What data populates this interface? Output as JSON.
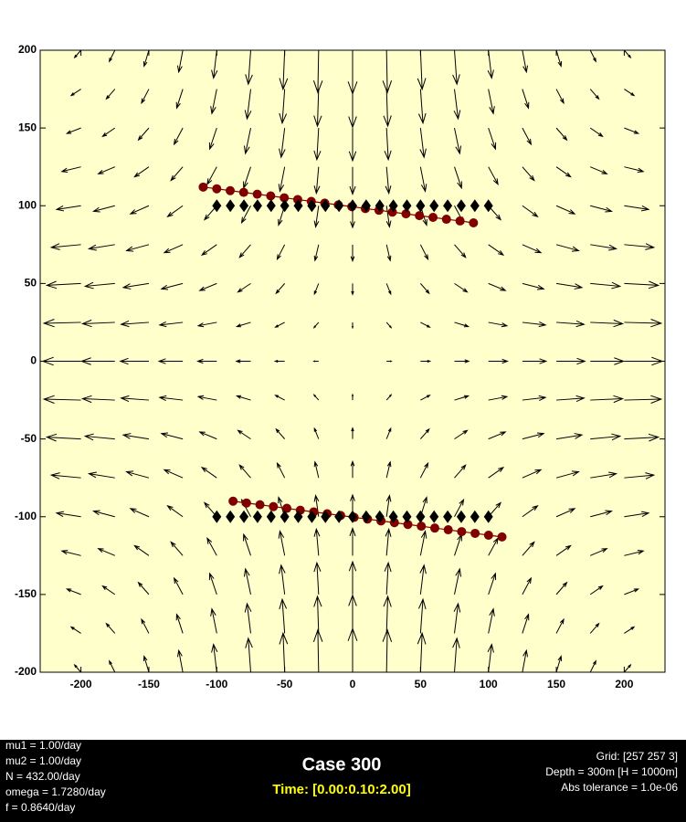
{
  "chart_data": {
    "type": "quiver",
    "title": "Case 300",
    "subtitle": "Time: [0.00:0.10:2.00]",
    "notes_left": [
      "mu1 = 1.00/day",
      "mu2 = 1.00/day",
      "N = 432.00/day",
      "omega = 1.7280/day",
      "f = 0.8640/day"
    ],
    "notes_right": [
      "Grid: [257 257 3]",
      "Depth = 300m  [H = 1000m]",
      "Abs tolerance = 1.0e-06"
    ],
    "xlim": [
      -230,
      230
    ],
    "ylim": [
      -200,
      200
    ],
    "xticks": [
      -200,
      -150,
      -100,
      -50,
      0,
      50,
      100,
      150,
      200
    ],
    "yticks": [
      -200,
      -150,
      -100,
      -50,
      0,
      50,
      100,
      150,
      200
    ],
    "background": "#ffffcc",
    "quiver": {
      "color": "#000000",
      "x": [
        -200,
        -175,
        -150,
        -125,
        -100,
        -75,
        -50,
        -25,
        0,
        25,
        50,
        75,
        100,
        125,
        150,
        175,
        200
      ],
      "y": [
        -200,
        -175,
        -150,
        -125,
        -100,
        -75,
        -50,
        -25,
        0,
        25,
        50,
        75,
        100,
        125,
        150,
        175,
        200
      ],
      "u": [
        [
          -4.7,
          -4.1,
          -3.5,
          -3.0,
          -2.4,
          -1.8,
          -1.2,
          -0.6,
          0,
          0.6,
          1.2,
          1.8,
          2.4,
          3.0,
          3.5,
          4.1,
          4.7
        ],
        [
          -7.2,
          -6.3,
          -5.4,
          -4.5,
          -3.6,
          -2.7,
          -1.8,
          -0.9,
          0,
          0.9,
          1.8,
          2.7,
          3.6,
          4.5,
          5.4,
          6.3,
          7.2
        ],
        [
          -10.3,
          -9.0,
          -7.7,
          -6.4,
          -5.2,
          -3.9,
          -2.6,
          -1.3,
          0,
          1.3,
          2.6,
          3.9,
          5.2,
          6.4,
          7.7,
          9.0,
          10.3
        ],
        [
          -14.0,
          -12.2,
          -10.5,
          -8.7,
          -7.0,
          -5.2,
          -3.5,
          -1.7,
          0,
          1.7,
          3.5,
          5.2,
          7.0,
          8.7,
          10.5,
          12.2,
          14.0
        ],
        [
          -17.9,
          -15.7,
          -13.5,
          -11.2,
          -9.0,
          -6.7,
          -4.5,
          -2.2,
          0,
          2.2,
          4.5,
          6.7,
          9.0,
          11.2,
          13.5,
          15.7,
          17.9
        ],
        [
          -21.8,
          -19.1,
          -16.4,
          -13.6,
          -10.9,
          -8.2,
          -5.5,
          -2.7,
          0,
          2.7,
          5.5,
          8.2,
          10.9,
          13.6,
          16.4,
          19.1,
          21.8
        ],
        [
          -25.1,
          -21.9,
          -18.8,
          -15.7,
          -12.5,
          -9.4,
          -6.3,
          -3.1,
          0,
          3.1,
          6.3,
          9.4,
          12.5,
          15.7,
          18.8,
          21.9,
          25.1
        ],
        [
          -27.2,
          -23.8,
          -20.4,
          -17.0,
          -13.6,
          -10.2,
          -6.8,
          -3.4,
          0,
          3.4,
          6.8,
          10.2,
          13.6,
          17.0,
          20.4,
          23.8,
          27.2
        ],
        [
          -28,
          -24.5,
          -21,
          -17.5,
          -14,
          -10.5,
          -7,
          -3.5,
          0,
          3.5,
          7,
          10.5,
          14,
          17.5,
          21,
          24.5,
          28
        ],
        [
          -27.2,
          -23.8,
          -20.4,
          -17.0,
          -13.6,
          -10.2,
          -6.8,
          -3.4,
          0,
          3.4,
          6.8,
          10.2,
          13.6,
          17.0,
          20.4,
          23.8,
          27.2
        ],
        [
          -25.1,
          -21.9,
          -18.8,
          -15.7,
          -12.5,
          -9.4,
          -6.3,
          -3.1,
          0,
          3.1,
          6.3,
          9.4,
          12.5,
          15.7,
          18.8,
          21.9,
          25.1
        ],
        [
          -21.8,
          -19.1,
          -16.4,
          -13.6,
          -10.9,
          -8.2,
          -5.5,
          -2.7,
          0,
          2.7,
          5.5,
          8.2,
          10.9,
          13.6,
          16.4,
          19.1,
          21.8
        ],
        [
          -17.9,
          -15.7,
          -13.5,
          -11.2,
          -9.0,
          -6.7,
          -4.5,
          -2.2,
          0,
          2.2,
          4.5,
          6.7,
          9.0,
          11.2,
          13.5,
          15.7,
          17.9
        ],
        [
          -14.0,
          -12.2,
          -10.5,
          -8.7,
          -7.0,
          -5.2,
          -3.5,
          -1.7,
          0,
          1.7,
          3.5,
          5.2,
          7.0,
          8.7,
          10.5,
          12.2,
          14.0
        ],
        [
          -10.3,
          -9.0,
          -7.7,
          -6.4,
          -5.2,
          -3.9,
          -2.6,
          -1.3,
          0,
          1.3,
          2.6,
          3.9,
          5.2,
          6.4,
          7.7,
          9.0,
          10.3
        ],
        [
          -7.2,
          -6.3,
          -5.4,
          -4.5,
          -3.6,
          -2.7,
          -1.8,
          -0.9,
          0,
          0.9,
          1.8,
          2.7,
          3.6,
          4.5,
          5.4,
          6.3,
          7.2
        ],
        [
          -4.7,
          -4.1,
          -3.5,
          -3.0,
          -2.4,
          -1.8,
          -1.2,
          -0.6,
          0,
          0.6,
          1.2,
          1.8,
          2.4,
          3.0,
          3.5,
          4.1,
          4.7
        ]
      ],
      "v": [
        [
          4.7,
          7.2,
          10.3,
          14.0,
          17.9,
          21.8,
          25.1,
          27.2,
          28,
          27.2,
          25.1,
          21.8,
          17.9,
          14.0,
          10.3,
          7.2,
          4.7
        ],
        [
          4.1,
          6.3,
          9.0,
          12.2,
          15.7,
          19.1,
          21.9,
          23.8,
          24.5,
          23.8,
          21.9,
          19.1,
          15.7,
          12.2,
          9.0,
          6.3,
          4.1
        ],
        [
          3.5,
          5.4,
          7.7,
          10.5,
          13.5,
          16.4,
          18.8,
          20.4,
          21,
          20.4,
          18.8,
          16.4,
          13.5,
          10.5,
          7.7,
          5.4,
          3.5
        ],
        [
          3.0,
          4.5,
          6.4,
          8.7,
          11.2,
          13.6,
          15.7,
          17.0,
          17.5,
          17.0,
          15.7,
          13.6,
          11.2,
          8.7,
          6.4,
          4.5,
          3.0
        ],
        [
          2.4,
          3.6,
          5.2,
          7.0,
          9.0,
          10.9,
          12.5,
          13.6,
          14,
          13.6,
          12.5,
          10.9,
          9.0,
          7.0,
          5.2,
          3.6,
          2.4
        ],
        [
          1.8,
          2.7,
          3.9,
          5.2,
          6.7,
          8.2,
          9.4,
          10.2,
          10.5,
          10.2,
          9.4,
          8.2,
          6.7,
          5.2,
          3.9,
          2.7,
          1.8
        ],
        [
          1.2,
          1.8,
          2.6,
          3.5,
          4.5,
          5.5,
          6.3,
          6.8,
          7,
          6.8,
          6.3,
          5.5,
          4.5,
          3.5,
          2.6,
          1.8,
          1.2
        ],
        [
          0.6,
          0.9,
          1.3,
          1.7,
          2.2,
          2.7,
          3.1,
          3.4,
          3.5,
          3.4,
          3.1,
          2.7,
          2.2,
          1.7,
          1.3,
          0.9,
          0.6
        ],
        [
          0,
          0,
          0,
          0,
          0,
          0,
          0,
          0,
          0,
          0,
          0,
          0,
          0,
          0,
          0,
          0,
          0
        ],
        [
          -0.6,
          -0.9,
          -1.3,
          -1.7,
          -2.2,
          -2.7,
          -3.1,
          -3.4,
          -3.5,
          -3.4,
          -3.1,
          -2.7,
          -2.2,
          -1.7,
          -1.3,
          -0.9,
          -0.6
        ],
        [
          -1.2,
          -1.8,
          -2.6,
          -3.5,
          -4.5,
          -5.5,
          -6.3,
          -6.8,
          -7,
          -6.8,
          -6.3,
          -5.5,
          -4.5,
          -3.5,
          -2.6,
          -1.8,
          -1.2
        ],
        [
          -1.8,
          -2.7,
          -3.9,
          -5.2,
          -6.7,
          -8.2,
          -9.4,
          -10.2,
          -10.5,
          -10.2,
          -9.4,
          -8.2,
          -6.7,
          -5.2,
          -3.9,
          -2.7,
          -1.8
        ],
        [
          -2.4,
          -3.6,
          -5.2,
          -7.0,
          -9.0,
          -10.9,
          -12.5,
          -13.6,
          -14,
          -13.6,
          -12.5,
          -10.9,
          -9.0,
          -7.0,
          -5.2,
          -3.6,
          -2.4
        ],
        [
          -3.0,
          -4.5,
          -6.4,
          -8.7,
          -11.2,
          -13.6,
          -15.7,
          -17.0,
          -17.5,
          -17.0,
          -15.7,
          -13.6,
          -11.2,
          -8.7,
          -6.4,
          -4.5,
          -3.0
        ],
        [
          -3.5,
          -5.4,
          -7.7,
          -10.5,
          -13.5,
          -16.4,
          -18.8,
          -20.4,
          -21,
          -20.4,
          -18.8,
          -16.4,
          -13.5,
          -10.5,
          -7.7,
          -5.4,
          -3.5
        ],
        [
          -4.1,
          -6.3,
          -9.0,
          -12.2,
          -15.7,
          -19.1,
          -21.9,
          -23.8,
          -24.5,
          -23.8,
          -21.9,
          -19.1,
          -15.7,
          -12.2,
          -9.0,
          -6.3,
          -4.1
        ],
        [
          -4.7,
          -7.2,
          -10.3,
          -14.0,
          -17.9,
          -21.8,
          -25.1,
          -27.2,
          -28,
          -27.2,
          -25.1,
          -21.8,
          -17.9,
          -14.0,
          -10.3,
          -7.2,
          -4.7
        ]
      ]
    },
    "series": [
      {
        "marker": "circle",
        "color": "#800000",
        "x": [
          -110,
          -100,
          -90.1,
          -80.2,
          -70.2,
          -60.3,
          -50.3,
          -40.4,
          -30.4,
          -20.5,
          -10.5,
          -0.6,
          9.4,
          19.4,
          29.3,
          39.3,
          49.2,
          59.2,
          69.1,
          79.1,
          89
        ],
        "y": [
          112,
          110.9,
          109.7,
          108.6,
          107.4,
          106.3,
          105.1,
          104,
          102.8,
          101.7,
          100.5,
          99.4,
          98.2,
          97.1,
          95.9,
          94.8,
          93.6,
          92.5,
          91.3,
          90.2,
          89
        ]
      },
      {
        "marker": "diamond",
        "color": "#000000",
        "x": [
          -100,
          -90,
          -80,
          -70,
          -60,
          -50,
          -40,
          -30,
          -20,
          -10,
          0,
          10,
          20,
          30,
          40,
          50,
          60,
          70,
          80,
          90,
          100
        ],
        "y": [
          100,
          100,
          100,
          100,
          100,
          100,
          100,
          100,
          100,
          100,
          100,
          100,
          100,
          100,
          100,
          100,
          100,
          100,
          100,
          100,
          100
        ]
      },
      {
        "marker": "circle",
        "color": "#800000",
        "x": [
          -88,
          -78.1,
          -68.2,
          -58.3,
          -48.4,
          -38.5,
          -28.6,
          -18.7,
          -8.8,
          1.1,
          11,
          20.9,
          30.8,
          40.7,
          50.6,
          60.5,
          70.4,
          80.3,
          90.2,
          100.1,
          110
        ],
        "y": [
          -90,
          -91.2,
          -92.3,
          -93.5,
          -94.6,
          -95.8,
          -96.9,
          -98.1,
          -99.2,
          -100.4,
          -101.5,
          -102.7,
          -103.8,
          -105,
          -106.1,
          -107.3,
          -108.4,
          -109.6,
          -110.7,
          -111.9,
          -113
        ]
      },
      {
        "marker": "diamond",
        "color": "#000000",
        "x": [
          -100,
          -90,
          -80,
          -70,
          -60,
          -50,
          -40,
          -30,
          -20,
          -10,
          0,
          10,
          20,
          30,
          40,
          50,
          60,
          70,
          80,
          90,
          100
        ],
        "y": [
          -100,
          -100,
          -100,
          -100,
          -100,
          -100,
          -100,
          -100,
          -100,
          -100,
          -100,
          -100,
          -100,
          -100,
          -100,
          -100,
          -100,
          -100,
          -100,
          -100,
          -100
        ]
      }
    ]
  }
}
